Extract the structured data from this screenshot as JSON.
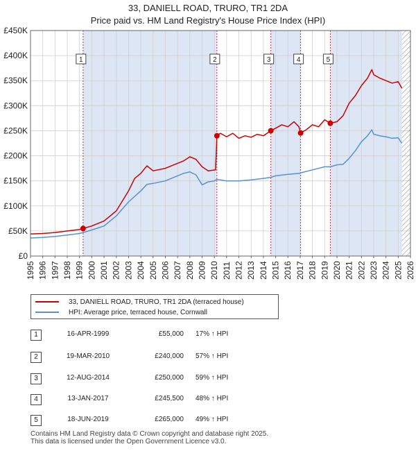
{
  "title_line1": "33, DANIELL ROAD, TRURO, TR1 2DA",
  "title_line2": "Price paid vs. HM Land Registry's House Price Index (HPI)",
  "legend": {
    "property_label": "33, DANIELL ROAD, TRURO, TR1 2DA (terraced house)",
    "hpi_label": "HPI: Average price, terraced house, Cornwall"
  },
  "colors": {
    "property": "#cc0000",
    "hpi": "#5b8fd0",
    "shade": "#dde6f5",
    "marker_line": "#cc0000"
  },
  "sales": [
    {
      "num": "1",
      "date": "16-APR-1999",
      "price": "£55,000",
      "hpi": "17% ↑ HPI"
    },
    {
      "num": "2",
      "date": "19-MAR-2010",
      "price": "£240,000",
      "hpi": "57% ↑ HPI"
    },
    {
      "num": "3",
      "date": "12-AUG-2014",
      "price": "£250,000",
      "hpi": "59% ↑ HPI"
    },
    {
      "num": "4",
      "date": "13-JAN-2017",
      "price": "£245,500",
      "hpi": "48% ↑ HPI"
    },
    {
      "num": "5",
      "date": "18-JUN-2019",
      "price": "£265,000",
      "hpi": "49% ↑ HPI"
    }
  ],
  "footer": {
    "line1": "Contains HM Land Registry data © Crown copyright and database right 2025.",
    "line2": "This data is licensed under the Open Government Licence v3.0."
  },
  "chart_data": {
    "type": "line",
    "title": "33, DANIELL ROAD, TRURO, TR1 2DA",
    "subtitle": "Price paid vs. HM Land Registry's House Price Index (HPI)",
    "xlabel": "",
    "ylabel": "",
    "xlim": [
      1995,
      2026
    ],
    "ylim": [
      0,
      450000
    ],
    "x_ticks": [
      "1995",
      "1996",
      "1997",
      "1998",
      "1999",
      "2000",
      "2001",
      "2002",
      "2003",
      "2004",
      "2005",
      "2006",
      "2007",
      "2008",
      "2009",
      "2010",
      "2011",
      "2012",
      "2013",
      "2014",
      "2015",
      "2016",
      "2017",
      "2018",
      "2019",
      "2020",
      "2021",
      "2022",
      "2023",
      "2024",
      "2025",
      "2026"
    ],
    "y_ticks": [
      {
        "value": 0,
        "label": "£0"
      },
      {
        "value": 50000,
        "label": "£50K"
      },
      {
        "value": 100000,
        "label": "£100K"
      },
      {
        "value": 150000,
        "label": "£150K"
      },
      {
        "value": 200000,
        "label": "£200K"
      },
      {
        "value": 250000,
        "label": "£250K"
      },
      {
        "value": 300000,
        "label": "£300K"
      },
      {
        "value": 350000,
        "label": "£350K"
      },
      {
        "value": 400000,
        "label": "£400K"
      },
      {
        "value": 450000,
        "label": "£450K"
      }
    ],
    "grid": true,
    "shaded_ranges": [
      [
        1999.29,
        2010.21
      ],
      [
        2014.61,
        2017.04
      ],
      [
        2019.46,
        2025.3
      ]
    ],
    "forecast_hatch_from": 2025.3,
    "sale_markers": [
      {
        "label": "1",
        "x": 1999.29,
        "y": 55000
      },
      {
        "label": "2",
        "x": 2010.21,
        "y": 240000
      },
      {
        "label": "3",
        "x": 2014.61,
        "y": 250000
      },
      {
        "label": "4",
        "x": 2017.04,
        "y": 245500
      },
      {
        "label": "5",
        "x": 2019.46,
        "y": 265000
      }
    ],
    "series": [
      {
        "name": "33, DANIELL ROAD, TRURO, TR1 2DA (terraced house)",
        "x": [
          1995.0,
          1996.0,
          1997.0,
          1998.0,
          1999.0,
          1999.29,
          2000.0,
          2001.0,
          2002.0,
          2003.0,
          2003.5,
          2004.0,
          2004.5,
          2005.0,
          2006.0,
          2007.0,
          2007.5,
          2008.0,
          2008.5,
          2009.0,
          2009.5,
          2010.1,
          2010.21,
          2010.5,
          2011.0,
          2011.5,
          2012.0,
          2012.5,
          2013.0,
          2013.5,
          2014.0,
          2014.61,
          2015.0,
          2015.5,
          2016.0,
          2016.5,
          2016.9,
          2017.04,
          2017.5,
          2018.0,
          2018.5,
          2019.0,
          2019.46,
          2020.0,
          2020.5,
          2021.0,
          2021.5,
          2022.0,
          2022.5,
          2022.85,
          2023.0,
          2023.5,
          2024.0,
          2024.5,
          2025.0,
          2025.3
        ],
        "values": [
          44000,
          45000,
          47000,
          50000,
          53000,
          55000,
          60000,
          70000,
          90000,
          130000,
          155000,
          165000,
          180000,
          170000,
          175000,
          185000,
          190000,
          198000,
          193000,
          178000,
          170000,
          172000,
          240000,
          245000,
          238000,
          245000,
          235000,
          240000,
          237000,
          243000,
          240000,
          250000,
          255000,
          262000,
          258000,
          268000,
          258000,
          245500,
          252000,
          262000,
          258000,
          272000,
          265000,
          268000,
          280000,
          305000,
          320000,
          340000,
          355000,
          372000,
          362000,
          355000,
          350000,
          345000,
          348000,
          335000
        ]
      },
      {
        "name": "HPI: Average price, terraced house, Cornwall",
        "x": [
          1995.0,
          1996.0,
          1997.0,
          1998.0,
          1999.0,
          1999.29,
          2000.0,
          2001.0,
          2002.0,
          2003.0,
          2004.0,
          2004.5,
          2005.0,
          2006.0,
          2007.0,
          2007.5,
          2008.0,
          2008.5,
          2009.0,
          2009.5,
          2010.0,
          2010.21,
          2011.0,
          2012.0,
          2013.0,
          2014.0,
          2014.61,
          2015.0,
          2016.0,
          2017.0,
          2017.04,
          2018.0,
          2019.0,
          2019.46,
          2020.0,
          2020.5,
          2021.0,
          2021.5,
          2022.0,
          2022.5,
          2022.85,
          2023.0,
          2023.5,
          2024.0,
          2024.5,
          2025.0,
          2025.3
        ],
        "values": [
          36000,
          37000,
          39000,
          42000,
          45000,
          47000,
          52000,
          60000,
          80000,
          108000,
          130000,
          143000,
          145000,
          150000,
          160000,
          165000,
          168000,
          162000,
          142000,
          148000,
          150000,
          153000,
          150000,
          150000,
          152000,
          155000,
          157000,
          160000,
          163000,
          165000,
          166000,
          172000,
          178000,
          178000,
          182000,
          183000,
          195000,
          210000,
          228000,
          240000,
          252000,
          243000,
          240000,
          238000,
          235000,
          236000,
          225000
        ]
      }
    ]
  }
}
